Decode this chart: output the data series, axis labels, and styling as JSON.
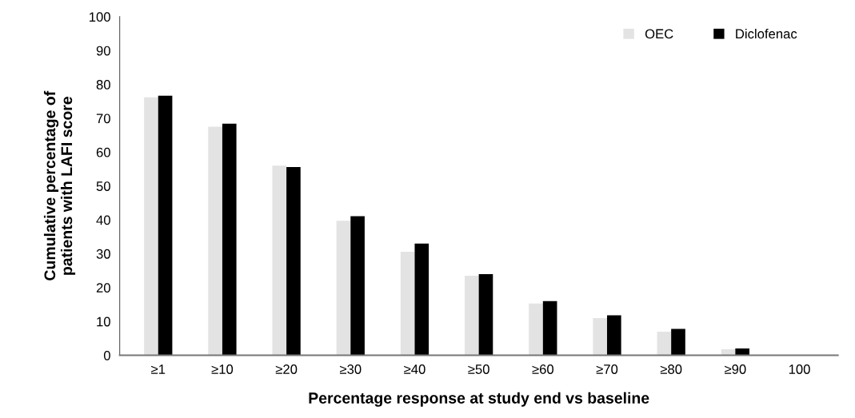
{
  "chart_data": {
    "type": "bar",
    "xlabel": "Percentage response at study end vs baseline",
    "ylabel": "Cumulative percentage of\npatients with LAFI score",
    "categories": [
      "≥1",
      "≥10",
      "≥20",
      "≥30",
      "≥40",
      "≥50",
      "≥60",
      "≥70",
      "≥80",
      "≥90",
      "100"
    ],
    "series": [
      {
        "name": "OEC",
        "color": "#e3e3e3",
        "values": [
          76.2,
          67.5,
          56,
          39.7,
          30.6,
          23.5,
          15.3,
          11,
          7,
          1.8,
          0
        ]
      },
      {
        "name": "Diclofenac",
        "color": "#000000",
        "values": [
          76.7,
          68.4,
          55.6,
          41.1,
          33,
          24,
          16,
          11.8,
          7.8,
          2,
          0
        ]
      }
    ],
    "ylim": [
      0,
      100
    ],
    "yticks": [
      0,
      10,
      20,
      30,
      40,
      50,
      60,
      70,
      80,
      90,
      100
    ],
    "grid": false,
    "legend": "top right"
  }
}
